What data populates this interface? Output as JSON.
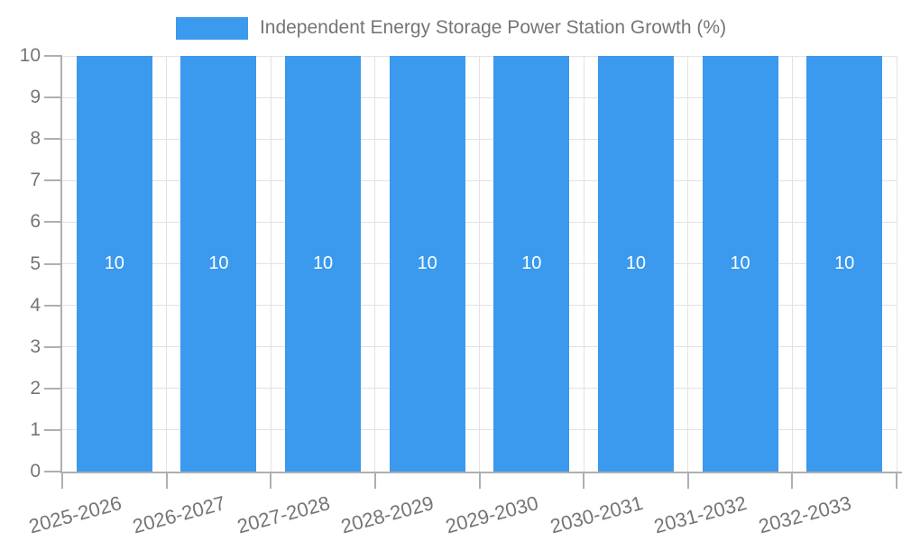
{
  "legend": {
    "label": "Independent Energy Storage Power Station Growth (%)"
  },
  "chart_data": {
    "type": "bar",
    "title": "Independent Energy Storage Power Station Growth (%)",
    "categories": [
      "2025-2026",
      "2026-2027",
      "2027-2028",
      "2028-2029",
      "2029-2030",
      "2030-2031",
      "2031-2032",
      "2032-2033"
    ],
    "values": [
      10,
      10,
      10,
      10,
      10,
      10,
      10,
      10
    ],
    "bar_value_labels": [
      "10",
      "10",
      "10",
      "10",
      "10",
      "10",
      "10",
      "10"
    ],
    "xlabel": "",
    "ylabel": "",
    "ylim": [
      0,
      10
    ],
    "ytick_labels": [
      "0",
      "1",
      "2",
      "3",
      "4",
      "5",
      "6",
      "7",
      "8",
      "9",
      "10"
    ],
    "grid": true,
    "legend_position": "top-center",
    "x_label_rotation_deg": -15,
    "colors": {
      "bar": "#3B99EE",
      "bar_label": "#FFFFFF",
      "axis_text": "#757575",
      "legend_text": "#757575",
      "grid_line": "#E2E2E2",
      "axis_line": "#AFAFAF"
    }
  }
}
